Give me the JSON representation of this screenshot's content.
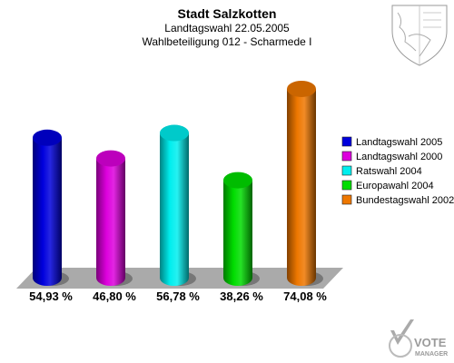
{
  "chart_data": {
    "type": "bar",
    "title": "Stadt Salzkotten",
    "subtitle_1": "Landtagswahl 22.05.2005",
    "subtitle_2": "Wahlbeteiligung 012 - Scharmede I",
    "categories": [
      "Landtagswahl 2005",
      "Landtagswahl 2000",
      "Ratswahl 2004",
      "Europawahl 2004",
      "Bundestagswahl 2002"
    ],
    "values": [
      54.93,
      46.8,
      56.78,
      38.26,
      74.08
    ],
    "value_labels": [
      "54,93 %",
      "46,80 %",
      "56,78 %",
      "38,26 %",
      "74,08 %"
    ],
    "colors": [
      "#0000dd",
      "#dd00dd",
      "#00eeee",
      "#00dd00",
      "#ee7700"
    ],
    "ylim": [
      0,
      100
    ],
    "legend_position": "right",
    "grid": false
  },
  "logo": {
    "text_top": "VOTE",
    "text_bottom": "MANAGER"
  }
}
